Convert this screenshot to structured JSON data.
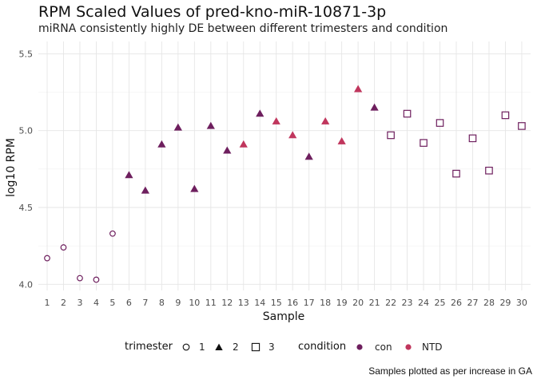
{
  "chart_data": {
    "type": "scatter",
    "title": "RPM Scaled Values of pred-kno-miR-10871-3p",
    "subtitle": "miRNA consistently highly DE between different trimesters and condition",
    "xlabel": "Sample",
    "ylabel": "log10 RPM",
    "ylim": [
      3.96,
      5.58
    ],
    "y_ticks": [
      "4.0",
      "4.5",
      "5.0",
      "5.5"
    ],
    "grid": true,
    "legend_position": "bottom",
    "caption": "Samples plotted as per increase in GA",
    "colors": {
      "con": "#6e1f5e",
      "NTD": "#c0365d"
    },
    "shapes": {
      "1": "circle-open",
      "2": "triangle-filled",
      "3": "square-open"
    },
    "legend": {
      "trimester": {
        "title": "trimester",
        "items": [
          "1",
          "2",
          "3"
        ]
      },
      "condition": {
        "title": "condition",
        "items": [
          "con",
          "NTD"
        ]
      }
    },
    "points": [
      {
        "sample": "1",
        "value": 4.17,
        "trimester": "1",
        "condition": "con"
      },
      {
        "sample": "2",
        "value": 4.24,
        "trimester": "1",
        "condition": "con"
      },
      {
        "sample": "3",
        "value": 4.04,
        "trimester": "1",
        "condition": "con"
      },
      {
        "sample": "4",
        "value": 4.03,
        "trimester": "1",
        "condition": "con"
      },
      {
        "sample": "5",
        "value": 4.33,
        "trimester": "1",
        "condition": "con"
      },
      {
        "sample": "6",
        "value": 4.71,
        "trimester": "2",
        "condition": "con"
      },
      {
        "sample": "7",
        "value": 4.61,
        "trimester": "2",
        "condition": "con"
      },
      {
        "sample": "8",
        "value": 4.91,
        "trimester": "2",
        "condition": "con"
      },
      {
        "sample": "9",
        "value": 5.02,
        "trimester": "2",
        "condition": "con"
      },
      {
        "sample": "10",
        "value": 4.62,
        "trimester": "2",
        "condition": "con"
      },
      {
        "sample": "11",
        "value": 5.03,
        "trimester": "2",
        "condition": "con"
      },
      {
        "sample": "12",
        "value": 4.87,
        "trimester": "2",
        "condition": "con"
      },
      {
        "sample": "13",
        "value": 4.91,
        "trimester": "2",
        "condition": "NTD"
      },
      {
        "sample": "14",
        "value": 5.11,
        "trimester": "2",
        "condition": "con"
      },
      {
        "sample": "15",
        "value": 5.06,
        "trimester": "2",
        "condition": "NTD"
      },
      {
        "sample": "16",
        "value": 4.97,
        "trimester": "2",
        "condition": "NTD"
      },
      {
        "sample": "17",
        "value": 4.83,
        "trimester": "2",
        "condition": "con"
      },
      {
        "sample": "18",
        "value": 5.06,
        "trimester": "2",
        "condition": "NTD"
      },
      {
        "sample": "19",
        "value": 4.93,
        "trimester": "2",
        "condition": "NTD"
      },
      {
        "sample": "20",
        "value": 5.27,
        "trimester": "2",
        "condition": "NTD"
      },
      {
        "sample": "21",
        "value": 5.15,
        "trimester": "2",
        "condition": "con"
      },
      {
        "sample": "22",
        "value": 4.97,
        "trimester": "3",
        "condition": "con"
      },
      {
        "sample": "23",
        "value": 5.11,
        "trimester": "3",
        "condition": "con"
      },
      {
        "sample": "24",
        "value": 4.92,
        "trimester": "3",
        "condition": "con"
      },
      {
        "sample": "25",
        "value": 5.05,
        "trimester": "3",
        "condition": "con"
      },
      {
        "sample": "26",
        "value": 4.72,
        "trimester": "3",
        "condition": "con"
      },
      {
        "sample": "27",
        "value": 4.95,
        "trimester": "3",
        "condition": "con"
      },
      {
        "sample": "28",
        "value": 4.74,
        "trimester": "3",
        "condition": "con"
      },
      {
        "sample": "29",
        "value": 5.1,
        "trimester": "3",
        "condition": "con"
      },
      {
        "sample": "30",
        "value": 5.03,
        "trimester": "3",
        "condition": "con"
      }
    ]
  }
}
